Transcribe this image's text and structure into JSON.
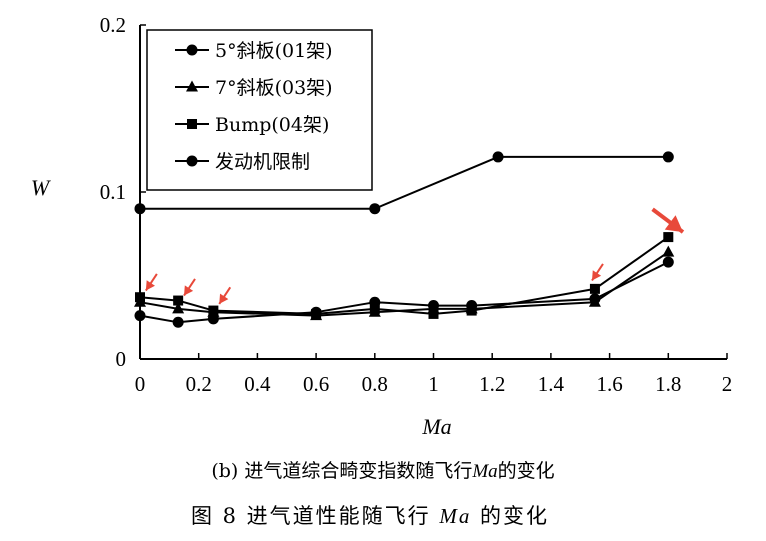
{
  "figure": {
    "subcaption_prefix": "(b) 进气道综合畸变指数随飞行",
    "subcaption_var": "Ma",
    "subcaption_suffix": "的变化",
    "caption_prefix": "图 8   进气道性能随飞行 ",
    "caption_var": "Ma",
    "caption_suffix": " 的变化"
  },
  "chart_data": {
    "type": "line",
    "title": "",
    "xlabel": "Ma",
    "ylabel": "W",
    "xlim": [
      0,
      2
    ],
    "ylim": [
      0,
      0.2
    ],
    "x_ticks": [
      0,
      0.2,
      0.4,
      0.6,
      0.8,
      1,
      1.2,
      1.4,
      1.6,
      1.8,
      2
    ],
    "x_tick_labels": [
      "0",
      "0.2",
      "0.4",
      "0.6",
      "0.8",
      "1",
      "1.2",
      "1.4",
      "1.6",
      "1.8",
      "2"
    ],
    "y_ticks": [
      0,
      0.1,
      0.2
    ],
    "y_tick_labels": [
      "0",
      "0.1",
      "0.2"
    ],
    "grid": false,
    "legend_position": "top-left",
    "series": [
      {
        "name": "5°斜板(01架)",
        "marker": "circle",
        "x": [
          0,
          0.13,
          0.25,
          0.6,
          0.8,
          1.0,
          1.13,
          1.55,
          1.8
        ],
        "y": [
          0.026,
          0.022,
          0.024,
          0.028,
          0.034,
          0.032,
          0.032,
          0.036,
          0.058
        ]
      },
      {
        "name": "7°斜板(03架)",
        "marker": "triangle",
        "x": [
          0,
          0.13,
          0.25,
          0.6,
          0.8,
          1.0,
          1.13,
          1.55,
          1.8
        ],
        "y": [
          0.034,
          0.03,
          0.028,
          0.026,
          0.028,
          0.03,
          0.03,
          0.034,
          0.064
        ]
      },
      {
        "name": "Bump(04架)",
        "marker": "square",
        "x": [
          0,
          0.13,
          0.25,
          0.6,
          0.8,
          1.0,
          1.13,
          1.55,
          1.8
        ],
        "y": [
          0.037,
          0.035,
          0.029,
          0.027,
          0.03,
          0.027,
          0.029,
          0.042,
          0.073
        ]
      },
      {
        "name": "发动机限制",
        "marker": "circle",
        "x": [
          0,
          0.8,
          1.22,
          1.8
        ],
        "y": [
          0.09,
          0.09,
          0.121,
          0.121
        ]
      }
    ],
    "annotations": [
      {
        "type": "arrow",
        "color": "#e8493a",
        "x": 0.02,
        "y": 0.041
      },
      {
        "type": "arrow",
        "color": "#e8493a",
        "x": 0.15,
        "y": 0.038
      },
      {
        "type": "arrow",
        "color": "#e8493a",
        "x": 0.27,
        "y": 0.033
      },
      {
        "type": "arrow",
        "color": "#e8493a",
        "x": 1.54,
        "y": 0.047
      },
      {
        "type": "arrow",
        "color": "#e8493a",
        "x": 1.85,
        "y": 0.076
      }
    ]
  }
}
